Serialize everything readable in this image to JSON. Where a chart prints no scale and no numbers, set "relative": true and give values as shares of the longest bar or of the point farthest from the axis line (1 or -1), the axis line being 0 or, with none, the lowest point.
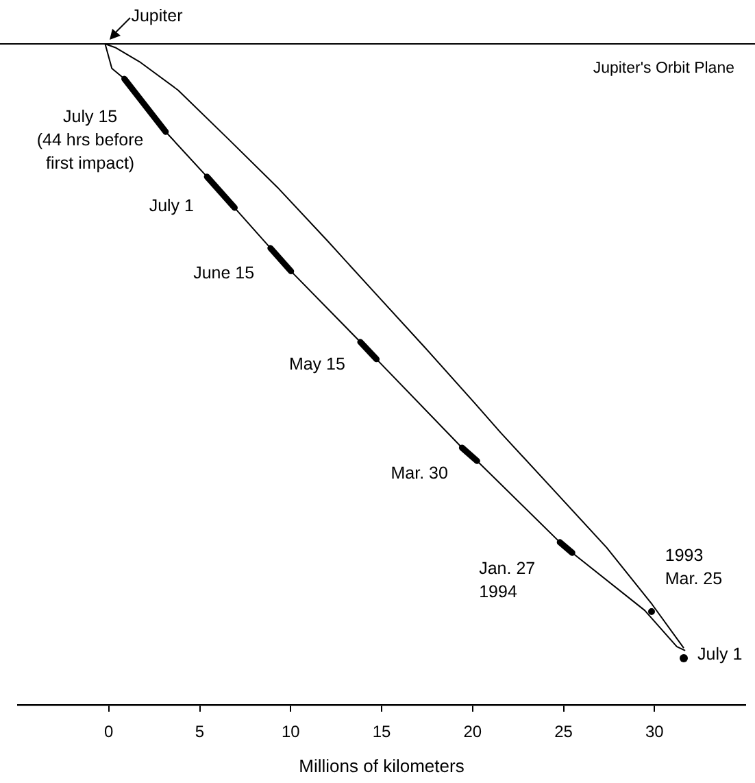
{
  "chart_data": {
    "type": "line",
    "relative": true,
    "xlabel": "Millions of kilometers",
    "xlim": [
      -5,
      35
    ],
    "xticks": [
      0,
      5,
      10,
      15,
      20,
      25,
      30
    ],
    "marker": "none",
    "series": [
      {
        "color": "#000000",
        "x": [
          -0.2,
          0.17,
          0.86,
          3.13,
          5.4,
          6.92,
          8.89,
          10.02,
          13.83,
          14.72,
          19.42,
          20.25,
          24.8,
          25.48,
          29.46,
          31.23,
          31.69
        ],
        "values": [
          1,
          0.963,
          0.947,
          0.867,
          0.799,
          0.752,
          0.691,
          0.656,
          0.549,
          0.523,
          0.389,
          0.369,
          0.246,
          0.23,
          0.143,
          0.088,
          0.082
        ]
      },
      {
        "color": "#000000",
        "x": [
          -0.2,
          0.4,
          1.69,
          3.81,
          6.54,
          9.27,
          11.99,
          14.64,
          17.37,
          20.1,
          21.54,
          24.49,
          27.37,
          29.87,
          31.61
        ],
        "values": [
          1,
          0.994,
          0.973,
          0.93,
          0.857,
          0.783,
          0.703,
          0.623,
          0.541,
          0.457,
          0.412,
          0.324,
          0.238,
          0.152,
          0.086
        ]
      },
      {
        "color": "#000000",
        "x": [
          0.86,
          3.13
        ],
        "values": [
          0.947,
          0.867
        ]
      },
      {
        "color": "#000000",
        "x": [
          5.4,
          6.92
        ],
        "values": [
          0.799,
          0.752
        ]
      },
      {
        "color": "#000000",
        "x": [
          8.89,
          10.02
        ],
        "values": [
          0.691,
          0.656
        ]
      },
      {
        "color": "#000000",
        "x": [
          13.83,
          14.72
        ],
        "values": [
          0.549,
          0.523
        ]
      },
      {
        "color": "#000000",
        "x": [
          19.42,
          20.25
        ],
        "values": [
          0.389,
          0.369
        ]
      },
      {
        "color": "#000000",
        "x": [
          24.8,
          25.48
        ],
        "values": [
          0.246,
          0.23
        ]
      }
    ],
    "ref_lines": [
      {
        "axis": "y",
        "value": 1,
        "label": "Jupiter's Orbit Plane",
        "color": "#000000"
      }
    ],
    "annotations": [
      {
        "text": "Jupiter",
        "x": -0.2,
        "y": 1
      },
      {
        "text": "July 15\n(44 hrs before\nfirst impact)",
        "x": 1.99,
        "y": 0.907
      },
      {
        "text": "July 1",
        "x": 6.16,
        "y": 0.776
      },
      {
        "text": "June 15",
        "x": 9.45,
        "y": 0.674
      },
      {
        "text": "May 15",
        "x": 14.28,
        "y": 0.536
      },
      {
        "text": "Mar. 30",
        "x": 19.83,
        "y": 0.379
      },
      {
        "text": "Jan. 27\n1994",
        "x": 25.14,
        "y": 0.238
      },
      {
        "text": "1993\nMar. 25",
        "x": 29.87,
        "y": 0.152
      },
      {
        "text": "July 1",
        "x": 31.69,
        "y": 0.082
      }
    ]
  }
}
